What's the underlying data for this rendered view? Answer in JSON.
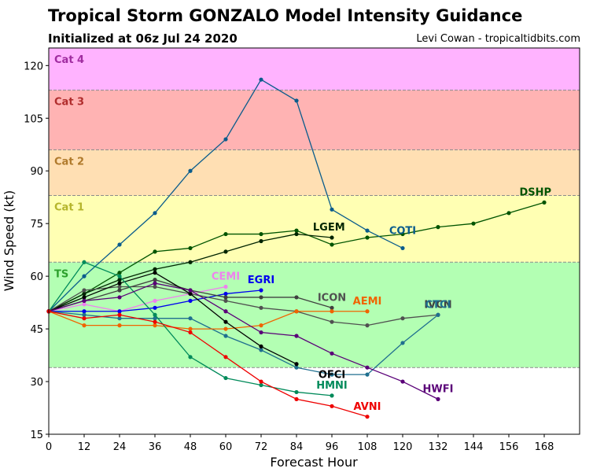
{
  "title": "Tropical Storm GONZALO Model Intensity Guidance",
  "subtitle": "Initialized at 06z Jul 24 2020",
  "credit": "Levi Cowan - tropicaltidbits.com",
  "chart_data": {
    "type": "line",
    "xlabel": "Forecast Hour",
    "ylabel": "Wind Speed (kt)",
    "xlim": [
      0,
      180
    ],
    "ylim": [
      15,
      125
    ],
    "xticks": [
      0,
      12,
      24,
      36,
      48,
      60,
      72,
      84,
      96,
      108,
      120,
      132,
      144,
      156,
      168
    ],
    "yticks": [
      15,
      30,
      45,
      60,
      75,
      90,
      105,
      120
    ],
    "bands": [
      {
        "label": "TS",
        "from": 34,
        "to": 64,
        "color": "#b3ffb3",
        "label_color": "#2ca02c"
      },
      {
        "label": "Cat 1",
        "from": 64,
        "to": 83,
        "color": "#ffffb3",
        "label_color": "#b5b52c"
      },
      {
        "label": "Cat 2",
        "from": 83,
        "to": 96,
        "color": "#ffdfb3",
        "label_color": "#b07a2c"
      },
      {
        "label": "Cat 3",
        "from": 96,
        "to": 113,
        "color": "#ffb3b3",
        "label_color": "#b02c2c"
      },
      {
        "label": "Cat 4",
        "from": 113,
        "to": 125,
        "color": "#ffb3ff",
        "label_color": "#a02ca0"
      }
    ],
    "series": [
      {
        "name": "DSHP",
        "color": "#005400",
        "label_at": [
          165,
          83
        ],
        "x": [
          0,
          12,
          24,
          36,
          48,
          60,
          72,
          84,
          96,
          108,
          120,
          132,
          144,
          156,
          168
        ],
        "y": [
          50,
          55,
          61,
          67,
          68,
          72,
          72,
          73,
          69,
          71,
          72,
          74,
          75,
          78,
          81
        ]
      },
      {
        "name": "LGEM",
        "color": "#002400",
        "label_at": [
          95,
          73
        ],
        "x": [
          0,
          12,
          24,
          36,
          48,
          60,
          72,
          84,
          96
        ],
        "y": [
          50,
          55,
          59,
          62,
          64,
          67,
          70,
          72,
          71
        ]
      },
      {
        "name": "COTI",
        "color": "#0a5c8c",
        "label_at": [
          120,
          72
        ],
        "x": [
          0,
          12,
          24,
          36,
          48,
          60,
          72,
          84,
          96,
          108,
          120
        ],
        "y": [
          50,
          60,
          69,
          78,
          90,
          99,
          116,
          110,
          79,
          73,
          68
        ]
      },
      {
        "name": "CEMI",
        "color": "#ee82ee",
        "label_at": [
          60,
          59
        ],
        "x": [
          0,
          12,
          24,
          36,
          48,
          60
        ],
        "y": [
          50,
          52,
          50,
          53,
          55,
          57
        ]
      },
      {
        "name": "EGRI",
        "color": "#0000ee",
        "label_at": [
          72,
          58
        ],
        "x": [
          0,
          12,
          24,
          36,
          48,
          60,
          72
        ],
        "y": [
          50,
          50,
          50,
          51,
          53,
          55,
          56
        ]
      },
      {
        "name": "ICON",
        "color": "#505050",
        "label_at": [
          96,
          53
        ],
        "x": [
          0,
          12,
          24,
          36,
          48,
          60,
          72,
          84,
          96,
          108,
          120,
          132
        ],
        "y": [
          50,
          56,
          57,
          57,
          55,
          53,
          51,
          50,
          47,
          46,
          48,
          49
        ]
      },
      {
        "name": "IVCN",
        "color": "#404040",
        "label_at": [
          132,
          51
        ],
        "x": [
          0,
          12,
          24,
          36,
          48,
          60,
          72,
          84,
          96
        ],
        "y": [
          50,
          53,
          56,
          59,
          56,
          54,
          54,
          54,
          51
        ]
      },
      {
        "name": "CTCI",
        "color": "#1f6f8f",
        "label_at": [
          132,
          51
        ],
        "x": [
          0,
          12,
          24,
          36,
          48,
          60,
          72,
          84,
          96,
          108,
          120,
          132
        ],
        "y": [
          50,
          49,
          48,
          48,
          48,
          43,
          39,
          34,
          32,
          32,
          41,
          49
        ]
      },
      {
        "name": "AEMI",
        "color": "#f06400",
        "label_at": [
          108,
          52
        ],
        "x": [
          0,
          12,
          24,
          36,
          48,
          60,
          72,
          84,
          96,
          108
        ],
        "y": [
          50,
          46,
          46,
          46,
          45,
          45,
          46,
          50,
          50,
          50
        ]
      },
      {
        "name": "OFCI",
        "color": "#000000",
        "label_at": [
          96,
          31
        ],
        "x": [
          0,
          12,
          24,
          36,
          48,
          60,
          72,
          84
        ],
        "y": [
          50,
          54,
          58,
          61,
          55,
          47,
          40,
          35
        ]
      },
      {
        "name": "HMNI",
        "color": "#008a5a",
        "label_at": [
          96,
          28
        ],
        "x": [
          0,
          12,
          24,
          36,
          48,
          60,
          72,
          84,
          96
        ],
        "y": [
          50,
          64,
          60,
          49,
          37,
          31,
          29,
          27,
          26
        ]
      },
      {
        "name": "HWFI",
        "color": "#5a0078",
        "label_at": [
          132,
          27
        ],
        "x": [
          0,
          12,
          24,
          36,
          48,
          60,
          72,
          84,
          96,
          108,
          120,
          132
        ],
        "y": [
          50,
          53,
          54,
          58,
          56,
          50,
          44,
          43,
          38,
          34,
          30,
          25
        ]
      },
      {
        "name": "AVNI",
        "color": "#ee0000",
        "label_at": [
          108,
          22
        ],
        "x": [
          0,
          12,
          24,
          36,
          48,
          60,
          72,
          84,
          96,
          108
        ],
        "y": [
          50,
          48,
          49,
          47,
          44,
          37,
          30,
          25,
          23,
          20
        ]
      }
    ]
  }
}
